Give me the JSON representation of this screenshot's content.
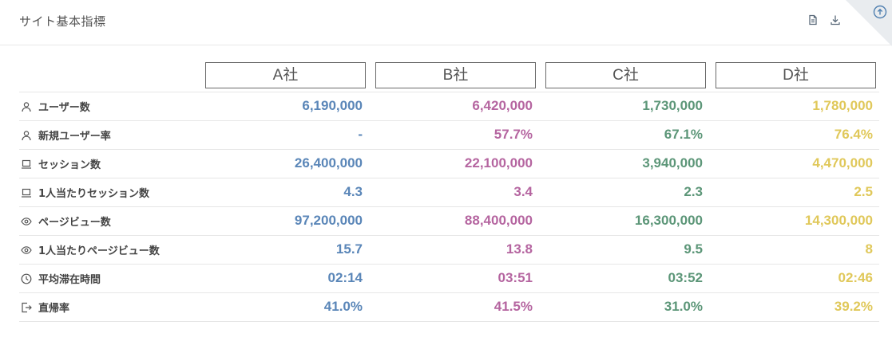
{
  "page": {
    "title": "サイト基本指標"
  },
  "icons": {
    "report": "document-icon",
    "download": "download-icon",
    "corner": "circle-arrow-up-icon"
  },
  "colors": {
    "company_a": "#5a86b8",
    "company_b": "#b565a0",
    "company_c": "#5c9678",
    "company_d": "#e0c85a"
  },
  "table": {
    "columns": [
      "A社",
      "B社",
      "C社",
      "D社"
    ],
    "rows": [
      {
        "icon": "user-icon",
        "label": "ユーザー数",
        "values": [
          "6,190,000",
          "6,420,000",
          "1,730,000",
          "1,780,000"
        ]
      },
      {
        "icon": "user-icon",
        "label": "新規ユーザー率",
        "values": [
          "-",
          "57.7%",
          "67.1%",
          "76.4%"
        ]
      },
      {
        "icon": "laptop-icon",
        "label": "セッション数",
        "values": [
          "26,400,000",
          "22,100,000",
          "3,940,000",
          "4,470,000"
        ]
      },
      {
        "icon": "laptop-icon",
        "label": "1人当たりセッション数",
        "values": [
          "4.3",
          "3.4",
          "2.3",
          "2.5"
        ]
      },
      {
        "icon": "eye-icon",
        "label": "ページビュー数",
        "values": [
          "97,200,000",
          "88,400,000",
          "16,300,000",
          "14,300,000"
        ]
      },
      {
        "icon": "eye-icon",
        "label": "1人当たりページビュー数",
        "values": [
          "15.7",
          "13.8",
          "9.5",
          "8"
        ]
      },
      {
        "icon": "clock-icon",
        "label": "平均滞在時間",
        "values": [
          "02:14",
          "03:51",
          "03:52",
          "02:46"
        ]
      },
      {
        "icon": "exit-icon",
        "label": "直帰率",
        "values": [
          "41.0%",
          "41.5%",
          "31.0%",
          "39.2%"
        ]
      }
    ]
  }
}
